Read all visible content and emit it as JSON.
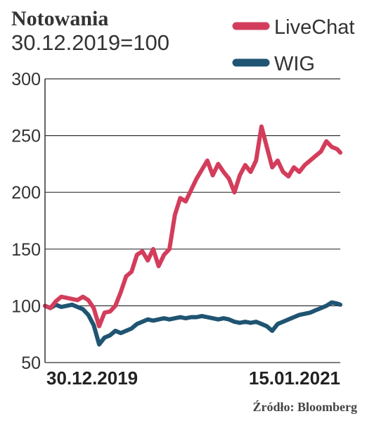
{
  "header": {
    "title": "Notowania",
    "subtitle": "30.12.2019=100"
  },
  "source": "Źródło: Bloomberg",
  "chart_data": {
    "type": "line",
    "title": "Notowania",
    "subtitle": "30.12.2019=100",
    "xlabel": "",
    "ylabel": "",
    "x_tick_labels": [
      "30.12.2019",
      "15.01.2021"
    ],
    "x_range": [
      "30.12.2019",
      "15.01.2021"
    ],
    "ylim": [
      50,
      300
    ],
    "y_ticks": [
      50,
      100,
      150,
      200,
      250,
      300
    ],
    "grid": "horizontal",
    "legend_position": "top-right",
    "x": [
      "2019-12-30",
      "2020-01-06",
      "2020-01-13",
      "2020-01-20",
      "2020-01-27",
      "2020-02-03",
      "2020-02-10",
      "2020-02-17",
      "2020-02-24",
      "2020-03-02",
      "2020-03-09",
      "2020-03-16",
      "2020-03-23",
      "2020-03-30",
      "2020-04-06",
      "2020-04-13",
      "2020-04-20",
      "2020-04-27",
      "2020-05-04",
      "2020-05-11",
      "2020-05-18",
      "2020-05-25",
      "2020-06-01",
      "2020-06-08",
      "2020-06-15",
      "2020-06-22",
      "2020-06-29",
      "2020-07-06",
      "2020-07-13",
      "2020-07-20",
      "2020-07-27",
      "2020-08-03",
      "2020-08-10",
      "2020-08-17",
      "2020-08-24",
      "2020-08-31",
      "2020-09-07",
      "2020-09-14",
      "2020-09-21",
      "2020-09-28",
      "2020-10-05",
      "2020-10-12",
      "2020-10-19",
      "2020-10-26",
      "2020-11-02",
      "2020-11-09",
      "2020-11-16",
      "2020-11-23",
      "2020-11-30",
      "2020-12-07",
      "2020-12-14",
      "2020-12-21",
      "2020-12-28",
      "2021-01-04",
      "2021-01-11",
      "2021-01-15"
    ],
    "series": [
      {
        "name": "LiveChat",
        "color": "#d33d5b",
        "values": [
          100,
          98,
          104,
          108,
          107,
          106,
          105,
          108,
          105,
          98,
          82,
          94,
          95,
          100,
          112,
          126,
          130,
          145,
          148,
          140,
          150,
          135,
          145,
          150,
          180,
          195,
          192,
          202,
          212,
          220,
          228,
          215,
          225,
          218,
          212,
          200,
          215,
          224,
          218,
          228,
          258,
          240,
          222,
          228,
          218,
          214,
          222,
          218,
          224,
          228,
          232,
          236,
          245,
          240,
          238,
          235
        ]
      },
      {
        "name": "WIG",
        "color": "#1f5472",
        "values": [
          100,
          98,
          101,
          99,
          100,
          101,
          99,
          97,
          92,
          83,
          66,
          72,
          74,
          78,
          76,
          78,
          80,
          84,
          86,
          88,
          87,
          88,
          89,
          88,
          89,
          90,
          89,
          90,
          90,
          91,
          90,
          89,
          88,
          89,
          88,
          86,
          85,
          86,
          85,
          86,
          84,
          82,
          78,
          84,
          86,
          88,
          90,
          92,
          93,
          94,
          96,
          98,
          100,
          103,
          102,
          101
        ]
      }
    ]
  }
}
